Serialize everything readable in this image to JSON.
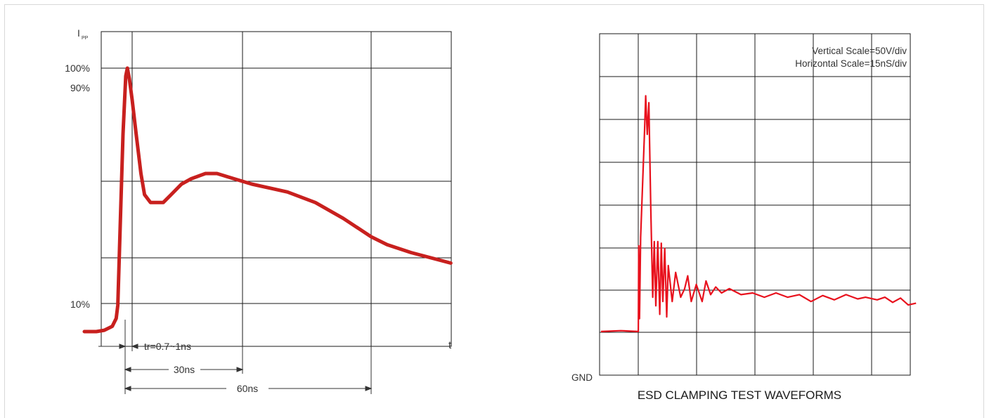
{
  "chart_data": [
    {
      "type": "line",
      "title": "",
      "y_axis_label": "I",
      "y_axis_label_sub": "PP",
      "x_axis_label": "t",
      "y_tick_labels": [
        "100%",
        "90%",
        "10%"
      ],
      "annotations": {
        "rise_time": "tr=0.7~1ns",
        "t30": "30ns",
        "t60": "60ns"
      },
      "series": [
        {
          "name": "",
          "color": "#c8201e",
          "points": [
            [
              -12,
              0
            ],
            [
              -9,
              0
            ],
            [
              -7,
              0.005
            ],
            [
              -5,
              0.02
            ],
            [
              -4,
              0.05
            ],
            [
              -3.6,
              0.1
            ],
            [
              -3,
              0.4
            ],
            [
              -2.3,
              0.75
            ],
            [
              -1.6,
              0.97
            ],
            [
              -1.2,
              1.0
            ],
            [
              -0.7,
              0.96
            ],
            [
              0,
              0.88
            ],
            [
              1,
              0.75
            ],
            [
              2.2,
              0.6
            ],
            [
              3.1,
              0.52
            ],
            [
              4.6,
              0.49
            ],
            [
              7.8,
              0.49
            ],
            [
              9.8,
              0.52
            ],
            [
              12.4,
              0.56
            ],
            [
              14.8,
              0.58
            ],
            [
              18.4,
              0.6
            ],
            [
              21.3,
              0.6
            ],
            [
              25.6,
              0.58
            ],
            [
              30,
              0.56
            ],
            [
              39,
              0.53
            ],
            [
              46,
              0.49
            ],
            [
              53,
              0.43
            ],
            [
              60,
              0.36
            ],
            [
              64,
              0.33
            ],
            [
              70,
              0.3
            ],
            [
              80,
              0.26
            ]
          ]
        }
      ]
    },
    {
      "type": "line",
      "title": "ESD CLAMPING TEST WAVEFORMS",
      "annotations": [
        "Vertical Scale=50V/div",
        "Horizontal Scale=15nS/div"
      ],
      "y_reference_label": "GND",
      "series": [
        {
          "name": "",
          "color": "#e8111d",
          "x_unit": "nS",
          "y_unit": "V",
          "points": [
            [
              0,
              5
            ],
            [
              5.1,
              6
            ],
            [
              9.6,
              5
            ],
            [
              9.7,
              105
            ],
            [
              9.9,
              20
            ],
            [
              10.2,
              115
            ],
            [
              11.2,
              240
            ],
            [
              11.5,
              280
            ],
            [
              11.9,
              235
            ],
            [
              12.3,
              272
            ],
            [
              12.8,
              150
            ],
            [
              13.3,
              45
            ],
            [
              13.7,
              110
            ],
            [
              14.1,
              35
            ],
            [
              14.6,
              110
            ],
            [
              15.1,
              25
            ],
            [
              15.5,
              108
            ],
            [
              15.9,
              40
            ],
            [
              16.4,
              102
            ],
            [
              16.9,
              22
            ],
            [
              17.3,
              82
            ],
            [
              18.3,
              40
            ],
            [
              19.2,
              74
            ],
            [
              20.5,
              45
            ],
            [
              21.5,
              55
            ],
            [
              22.3,
              70
            ],
            [
              23.2,
              40
            ],
            [
              24.5,
              60
            ],
            [
              26,
              40
            ],
            [
              27,
              64
            ],
            [
              28.2,
              48
            ],
            [
              29.5,
              57
            ],
            [
              31,
              50
            ],
            [
              33,
              55
            ],
            [
              36,
              48
            ],
            [
              39,
              50
            ],
            [
              42,
              45
            ],
            [
              45,
              50
            ],
            [
              48,
              45
            ],
            [
              51,
              48
            ],
            [
              54,
              40
            ],
            [
              57,
              47
            ],
            [
              60,
              42
            ],
            [
              63,
              48
            ],
            [
              66,
              43
            ],
            [
              68,
              45
            ],
            [
              71,
              42
            ],
            [
              73,
              45
            ],
            [
              75,
              39
            ],
            [
              77,
              44
            ],
            [
              79,
              36
            ],
            [
              81,
              38
            ]
          ]
        }
      ]
    }
  ]
}
